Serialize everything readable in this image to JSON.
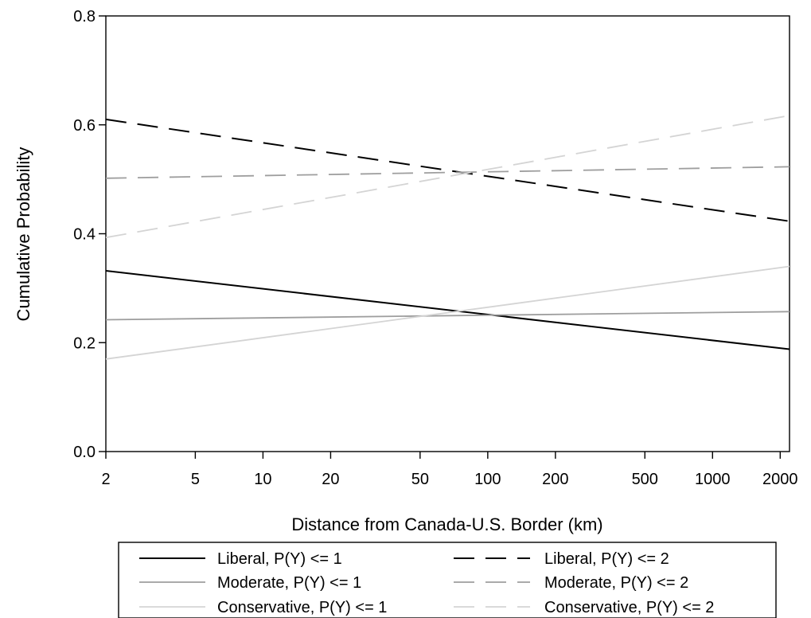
{
  "chart_data": {
    "type": "line",
    "title": "",
    "xlabel": "Distance from Canada-U.S. Border (km)",
    "ylabel": "Cumulative Probability",
    "x_scale": "log",
    "xlim": [
      2,
      2200
    ],
    "ylim": [
      0,
      0.8
    ],
    "x_ticks": [
      2,
      5,
      10,
      20,
      50,
      100,
      200,
      500,
      1000,
      2000
    ],
    "x_tick_labels": [
      "2",
      "5",
      "10",
      "20",
      "50",
      "100",
      "200",
      "500",
      "1000",
      "2000"
    ],
    "y_ticks": [
      0,
      0.2,
      0.4,
      0.6,
      0.8
    ],
    "y_tick_labels": [
      "0.0",
      "0.2",
      "0.4",
      "0.6",
      "0.8"
    ],
    "grid": false,
    "legend_position": "bottom",
    "series": [
      {
        "name": "Liberal, P(Y) <= 1",
        "color": "#000000",
        "dash": "solid",
        "x": [
          2,
          2200
        ],
        "values": [
          0.332,
          0.188
        ]
      },
      {
        "name": "Liberal, P(Y) <= 2",
        "color": "#000000",
        "dash": "long-dash",
        "x": [
          2,
          2200
        ],
        "values": [
          0.61,
          0.423
        ]
      },
      {
        "name": "Moderate, P(Y) <= 1",
        "color": "#9e9e9e",
        "dash": "solid",
        "x": [
          2,
          2200
        ],
        "values": [
          0.242,
          0.257
        ]
      },
      {
        "name": "Moderate, P(Y) <= 2",
        "color": "#9e9e9e",
        "dash": "long-dash",
        "x": [
          2,
          2200
        ],
        "values": [
          0.502,
          0.523
        ]
      },
      {
        "name": "Conservative, P(Y) <= 1",
        "color": "#d4d4d4",
        "dash": "solid",
        "x": [
          2,
          2200
        ],
        "values": [
          0.17,
          0.34
        ]
      },
      {
        "name": "Conservative, P(Y) <= 2",
        "color": "#d4d4d4",
        "dash": "long-dash",
        "x": [
          2,
          2200
        ],
        "values": [
          0.393,
          0.617
        ]
      }
    ]
  }
}
